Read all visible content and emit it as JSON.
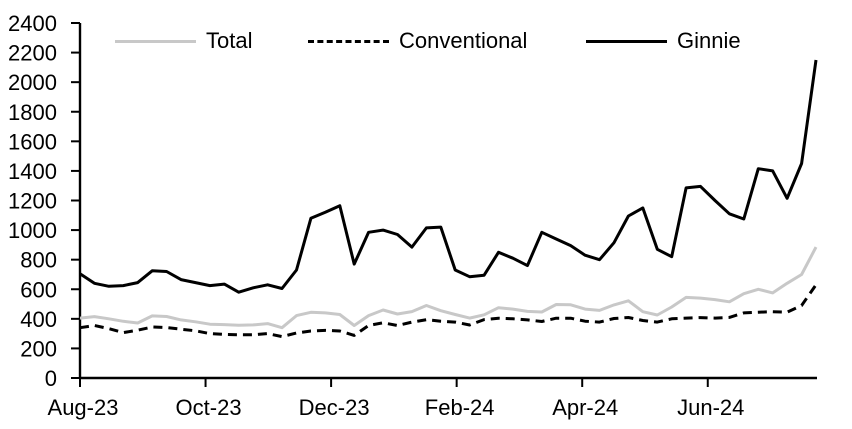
{
  "chart_data": {
    "type": "line",
    "title": "",
    "xlabel": "",
    "ylabel": "",
    "grid": false,
    "legend_position": "top-inside",
    "ylim": [
      0,
      2400
    ],
    "y_tick_step": 200,
    "y_tick_labels": [
      "0",
      "200",
      "400",
      "600",
      "800",
      "1000",
      "1200",
      "1400",
      "1600",
      "1800",
      "2000",
      "2200",
      "2400"
    ],
    "x_tick_labels": [
      "Aug-23",
      "Oct-23",
      "Dec-23",
      "Feb-24",
      "Apr-24",
      "Jun-24"
    ],
    "x_tick_week_index": [
      0,
      8.7,
      17.4,
      26.1,
      34.8,
      43.5
    ],
    "x_frequency": "weekly",
    "x_range_weeks": 52,
    "axis_color": "#000000",
    "series": [
      {
        "name": "Total",
        "color": "#c8c8c8",
        "style": "solid",
        "width": 3,
        "values": [
          405,
          415,
          400,
          383,
          372,
          420,
          416,
          393,
          380,
          364,
          361,
          357,
          359,
          368,
          340,
          422,
          444,
          440,
          429,
          355,
          422,
          460,
          433,
          449,
          490,
          455,
          429,
          405,
          427,
          475,
          466,
          450,
          446,
          497,
          495,
          466,
          457,
          494,
          522,
          448,
          426,
          480,
          545,
          540,
          530,
          515,
          570,
          600,
          575,
          640,
          700,
          885
        ]
      },
      {
        "name": "Conventional",
        "color": "#000000",
        "style": "dashed",
        "width": 3,
        "values": [
          340,
          355,
          334,
          307,
          323,
          345,
          341,
          330,
          319,
          300,
          295,
          292,
          292,
          300,
          280,
          304,
          318,
          322,
          318,
          288,
          355,
          373,
          355,
          378,
          394,
          384,
          378,
          358,
          395,
          404,
          400,
          393,
          382,
          404,
          404,
          384,
          378,
          402,
          409,
          389,
          378,
          400,
          405,
          408,
          405,
          410,
          440,
          445,
          448,
          445,
          490,
          630
        ]
      },
      {
        "name": "Ginnie",
        "color": "#000000",
        "style": "solid",
        "width": 3,
        "values": [
          705,
          640,
          620,
          625,
          645,
          725,
          720,
          665,
          645,
          625,
          635,
          580,
          610,
          630,
          605,
          730,
          1080,
          1120,
          1165,
          770,
          985,
          1000,
          970,
          885,
          1015,
          1020,
          730,
          685,
          695,
          850,
          810,
          760,
          985,
          940,
          895,
          830,
          800,
          915,
          1095,
          1150,
          870,
          820,
          1285,
          1295,
          1200,
          1110,
          1075,
          1415,
          1400,
          1215,
          1450,
          2150
        ]
      }
    ]
  }
}
